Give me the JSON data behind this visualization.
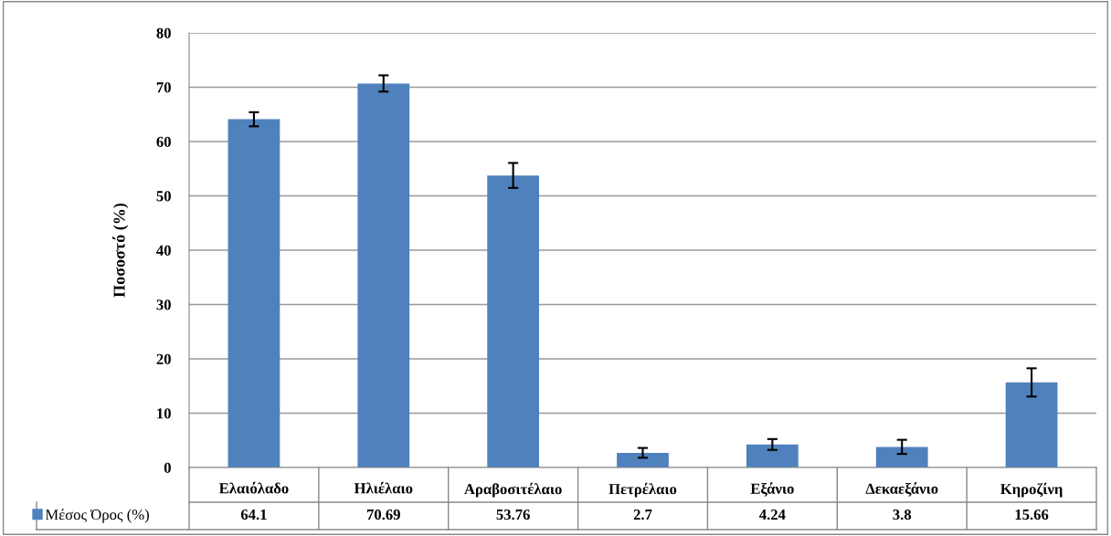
{
  "chart_data": {
    "type": "bar",
    "ylabel": "Ποσοστό (%)",
    "categories": [
      "Ελαιόλαδο",
      "Ηλιέλαιο",
      "Αραβοσιτέλαιο",
      "Πετρέλαιο",
      "Εξάνιο",
      "Δεκαεξάνιο",
      "Κηροζίνη"
    ],
    "series": [
      {
        "name": "Μέσος Όρος (%)",
        "color": "#4f81bd",
        "values": [
          64.1,
          70.69,
          53.76,
          2.7,
          4.24,
          3.8,
          15.66
        ],
        "errors": [
          1.3,
          1.5,
          2.3,
          0.9,
          1.0,
          1.3,
          2.6
        ]
      }
    ],
    "ylim": [
      0,
      80
    ],
    "yticks": [
      0,
      10,
      20,
      30,
      40,
      50,
      60,
      70,
      80
    ],
    "grid": "y",
    "data_labels": true,
    "legend": "bottom"
  }
}
